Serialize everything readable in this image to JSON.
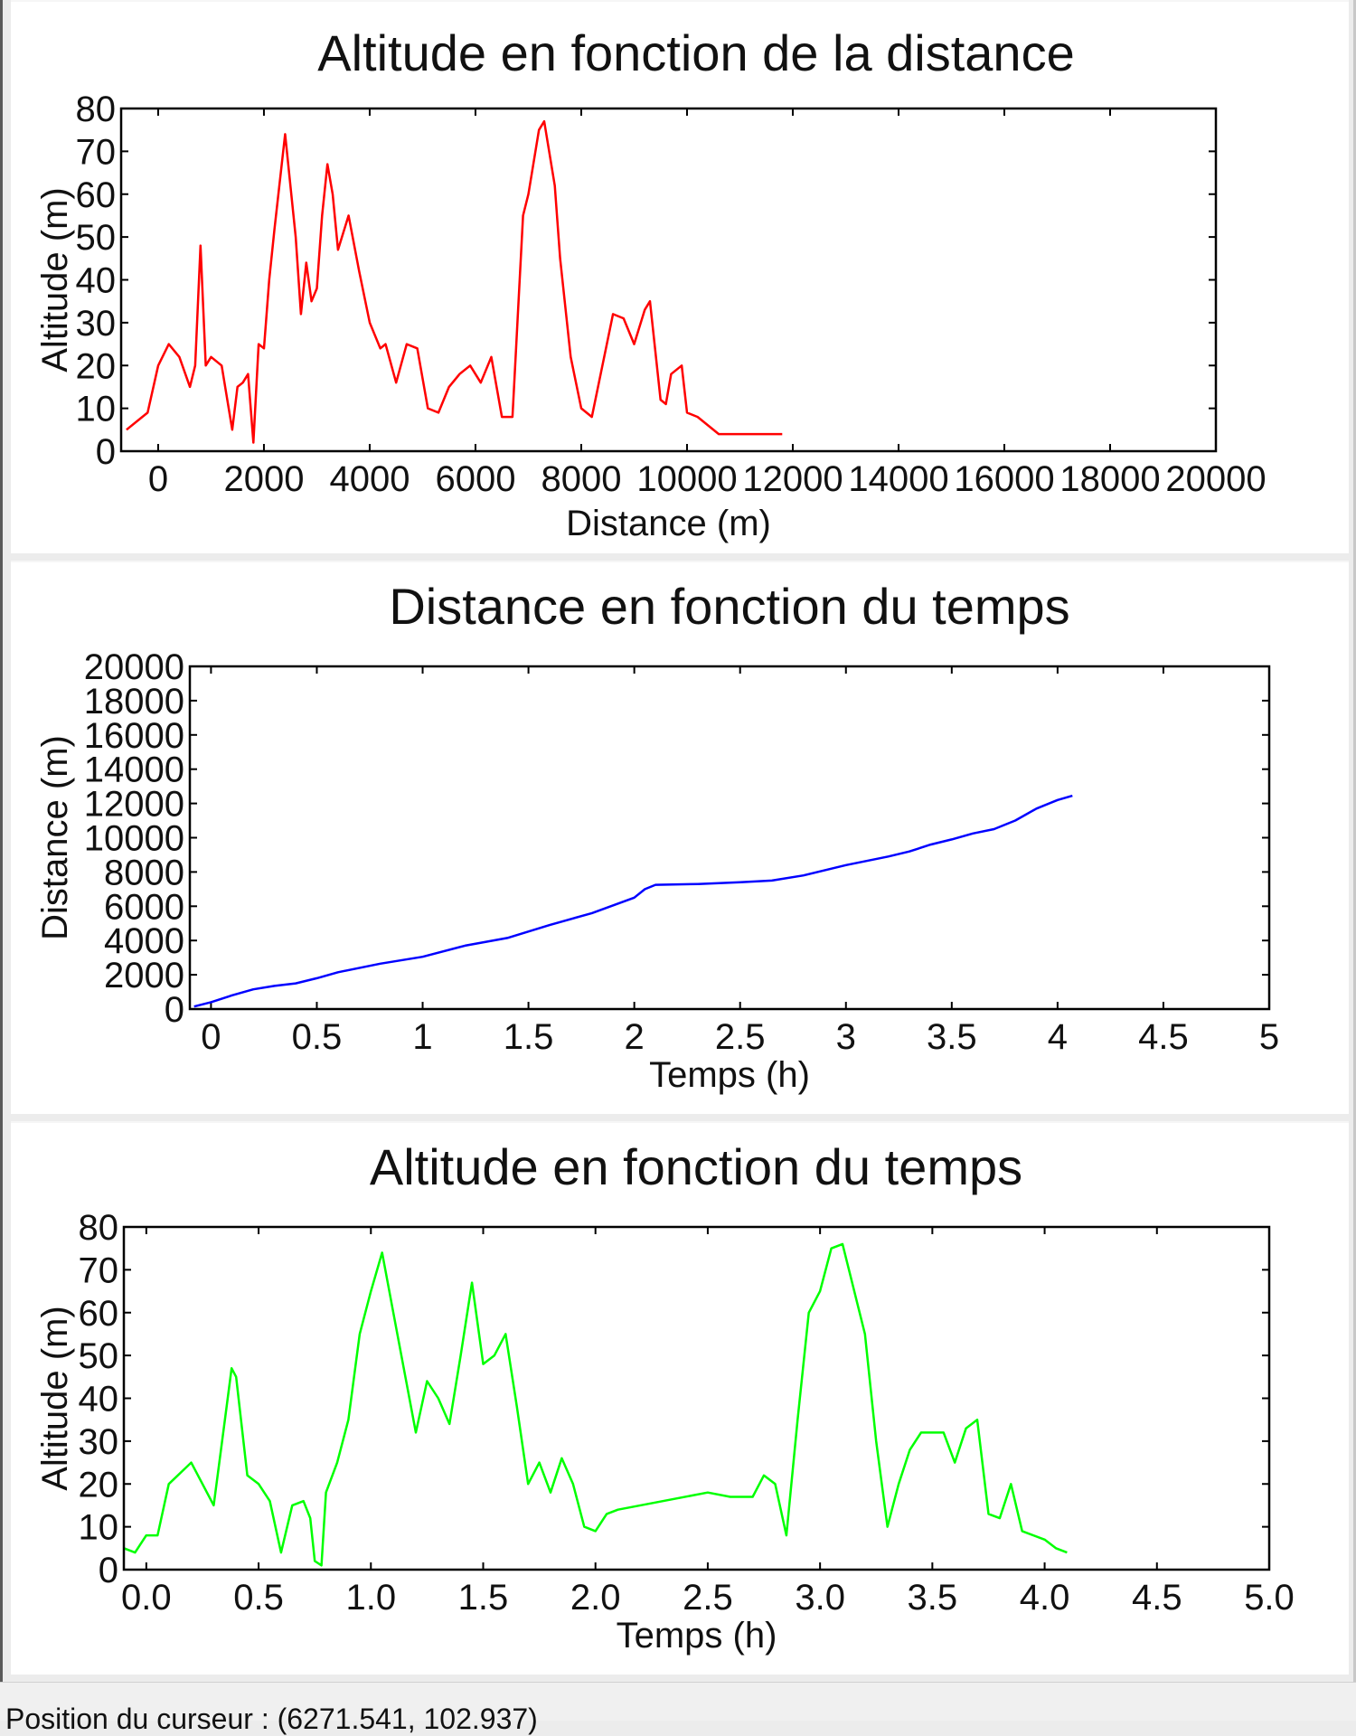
{
  "chart_data": [
    {
      "type": "line",
      "title": "Altitude en fonction de la distance",
      "xlabel": "Distance (m)",
      "ylabel": "Altitude (m)",
      "xlim": [
        -700,
        20000
      ],
      "ylim": [
        0,
        80
      ],
      "xticks": [
        0,
        2000,
        4000,
        6000,
        8000,
        10000,
        12000,
        14000,
        16000,
        18000,
        20000
      ],
      "yticks": [
        0,
        10,
        20,
        30,
        40,
        50,
        60,
        70,
        80
      ],
      "grid": false,
      "color": "#ff0000",
      "series": [
        {
          "x": [
            -600,
            -300,
            -200,
            0,
            200,
            400,
            600,
            700,
            800,
            900,
            1000,
            1200,
            1400,
            1500,
            1600,
            1700,
            1800,
            1900,
            2000,
            2100,
            2200,
            2400,
            2600,
            2700,
            2800,
            2900,
            3000,
            3100,
            3200,
            3300,
            3400,
            3600,
            3800,
            4000,
            4200,
            4300,
            4500,
            4700,
            4900,
            5100,
            5300,
            5500,
            5700,
            5900,
            6100,
            6300,
            6500,
            6700,
            6900,
            7000,
            7200,
            7300,
            7500,
            7600,
            7800,
            8000,
            8200,
            8400,
            8600,
            8800,
            9000,
            9200,
            9300,
            9500,
            9600,
            9700,
            9900,
            10000,
            10200,
            10400,
            10600,
            11000,
            11400,
            11600,
            11800
          ],
          "y": [
            5,
            8,
            9,
            20,
            25,
            22,
            15,
            20,
            48,
            20,
            22,
            20,
            5,
            15,
            16,
            18,
            2,
            25,
            24,
            40,
            52,
            74,
            50,
            32,
            44,
            35,
            38,
            55,
            67,
            60,
            47,
            55,
            42,
            30,
            24,
            25,
            16,
            25,
            24,
            10,
            9,
            15,
            18,
            20,
            16,
            22,
            8,
            8,
            55,
            60,
            75,
            77,
            62,
            45,
            22,
            10,
            8,
            20,
            32,
            31,
            25,
            33,
            35,
            12,
            11,
            18,
            20,
            9,
            8,
            6,
            4,
            4,
            4,
            4,
            4
          ]
        }
      ]
    },
    {
      "type": "line",
      "title": "Distance en fonction du temps",
      "xlabel": "Temps (h)",
      "ylabel": "Distance (m)",
      "xlim": [
        -0.1,
        5.0
      ],
      "ylim": [
        0,
        20000
      ],
      "xticks": [
        0.0,
        0.5,
        1.0,
        1.5,
        2.0,
        2.5,
        3.0,
        3.5,
        4.0,
        4.5,
        5.0
      ],
      "yticks": [
        0,
        2000,
        4000,
        6000,
        8000,
        10000,
        12000,
        14000,
        16000,
        18000,
        20000
      ],
      "grid": false,
      "color": "#0000ff",
      "series": [
        {
          "x": [
            -0.08,
            0.0,
            0.1,
            0.2,
            0.3,
            0.4,
            0.5,
            0.6,
            0.8,
            1.0,
            1.2,
            1.4,
            1.6,
            1.8,
            2.0,
            2.05,
            2.1,
            2.3,
            2.5,
            2.65,
            2.8,
            3.0,
            3.2,
            3.3,
            3.4,
            3.5,
            3.6,
            3.7,
            3.8,
            3.9,
            4.0,
            4.07
          ],
          "y": [
            150,
            400,
            800,
            1150,
            1350,
            1500,
            1800,
            2150,
            2650,
            3050,
            3700,
            4150,
            4900,
            5600,
            6500,
            7000,
            7250,
            7300,
            7400,
            7500,
            7800,
            8400,
            8900,
            9200,
            9600,
            9900,
            10250,
            10500,
            11000,
            11700,
            12200,
            12450
          ]
        }
      ]
    },
    {
      "type": "line",
      "title": "Altitude en fonction du temps",
      "xlabel": "Temps (h)",
      "ylabel": "Altitude (m)",
      "xlim": [
        -0.1,
        5.0
      ],
      "ylim": [
        0,
        80
      ],
      "xticks": [
        0.0,
        0.5,
        1.0,
        1.5,
        2.0,
        2.5,
        3.0,
        3.5,
        4.0,
        4.5,
        5.0
      ],
      "yticks": [
        0,
        10,
        20,
        30,
        40,
        50,
        60,
        70,
        80
      ],
      "grid": false,
      "color": "#00ff00",
      "series": [
        {
          "x": [
            -0.1,
            -0.05,
            0.0,
            0.05,
            0.1,
            0.2,
            0.25,
            0.3,
            0.35,
            0.38,
            0.4,
            0.45,
            0.5,
            0.55,
            0.6,
            0.65,
            0.7,
            0.73,
            0.75,
            0.78,
            0.8,
            0.85,
            0.9,
            0.95,
            1.0,
            1.05,
            1.1,
            1.2,
            1.25,
            1.3,
            1.35,
            1.4,
            1.45,
            1.5,
            1.55,
            1.6,
            1.65,
            1.7,
            1.75,
            1.8,
            1.85,
            1.9,
            1.95,
            2.0,
            2.05,
            2.1,
            2.3,
            2.5,
            2.6,
            2.7,
            2.75,
            2.8,
            2.85,
            2.9,
            2.95,
            3.0,
            3.05,
            3.1,
            3.2,
            3.25,
            3.3,
            3.35,
            3.4,
            3.45,
            3.55,
            3.6,
            3.65,
            3.7,
            3.75,
            3.8,
            3.85,
            3.9,
            4.0,
            4.05,
            4.1
          ],
          "y": [
            5,
            4,
            8,
            8,
            20,
            25,
            20,
            15,
            35,
            47,
            45,
            22,
            20,
            16,
            4,
            15,
            16,
            12,
            2,
            1,
            18,
            25,
            35,
            55,
            65,
            74,
            60,
            32,
            44,
            40,
            34,
            50,
            67,
            48,
            50,
            55,
            38,
            20,
            25,
            18,
            26,
            20,
            10,
            9,
            13,
            14,
            16,
            18,
            17,
            17,
            22,
            20,
            8,
            35,
            60,
            65,
            75,
            76,
            55,
            30,
            10,
            20,
            28,
            32,
            32,
            25,
            33,
            35,
            13,
            12,
            20,
            9,
            7,
            5,
            4
          ]
        }
      ]
    }
  ],
  "status_bar": {
    "text": "Position du curseur : (6271.541, 102.937)"
  }
}
